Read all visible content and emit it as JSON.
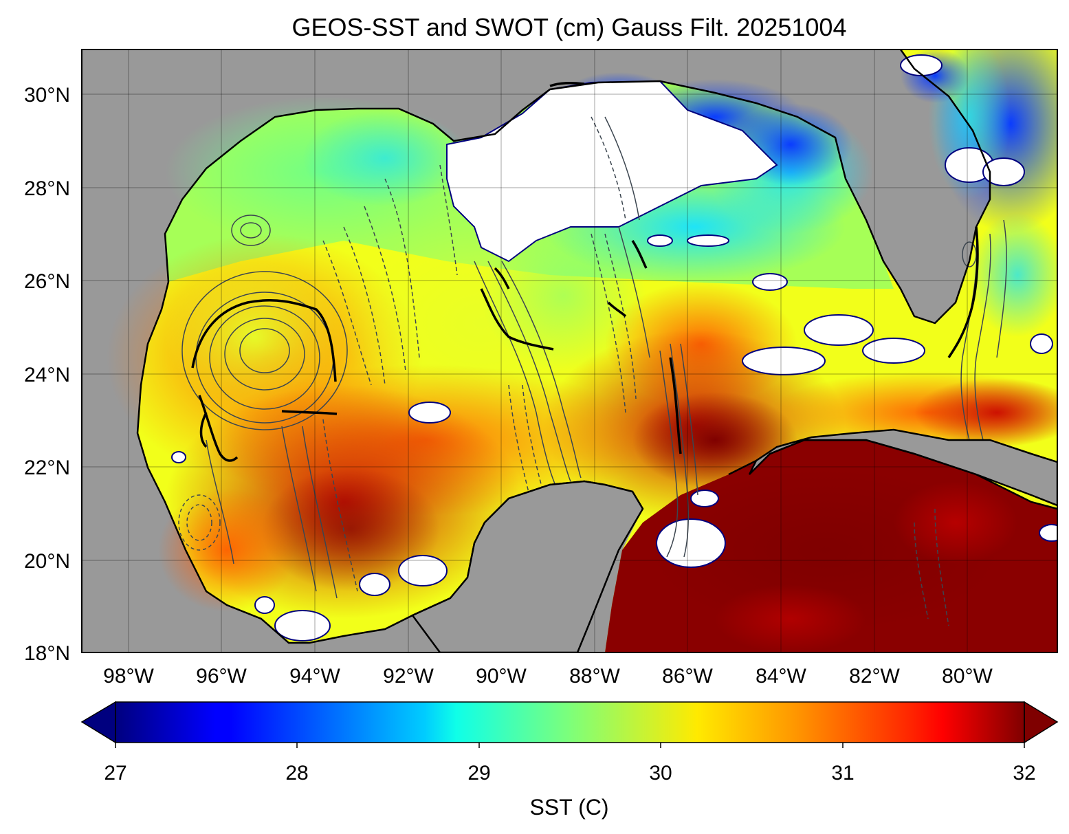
{
  "title": "GEOS-SST  and SWOT (cm) Gauss Filt. 20251004",
  "map": {
    "lat_ticks": [
      "30°N",
      "28°N",
      "26°N",
      "24°N",
      "22°N",
      "20°N",
      "18°N"
    ],
    "lon_ticks": [
      "98°W",
      "96°W",
      "94°W",
      "92°W",
      "90°W",
      "88°W",
      "86°W",
      "84°W",
      "82°W",
      "80°W"
    ],
    "land_color": "#999999",
    "cloud_color": "#ffffff",
    "contour_color": "#3c4650"
  },
  "colorbar": {
    "label": "SST (C)",
    "ticks": [
      "27",
      "28",
      "29",
      "30",
      "31",
      "32"
    ],
    "min": 27,
    "max": 32,
    "colormap": "jet",
    "extend": "both",
    "under_color": "#00007f",
    "over_color": "#7f0000"
  }
}
